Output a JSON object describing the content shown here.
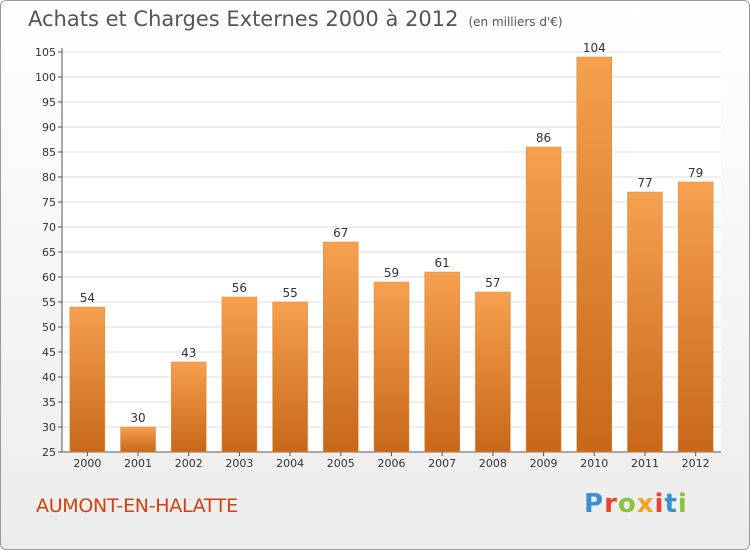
{
  "title": "Achats et Charges Externes 2000 à 2012",
  "unit": "(en milliers d'€)",
  "commune": "AUMONT-EN-HALATTE",
  "logo": {
    "text": "Proxiti",
    "colors": [
      "#3b8fd1",
      "#e8432c",
      "#8ac43f",
      "#f2a22a",
      "#e8432c",
      "#3b8fd1",
      "#8ac43f"
    ]
  },
  "colors": {
    "bar_top": "#f5a14f",
    "bar_bottom": "#c8671a",
    "title": "#555555",
    "commune": "#d2410c"
  },
  "chart_data": {
    "type": "bar",
    "categories": [
      "2000",
      "2001",
      "2002",
      "2003",
      "2004",
      "2005",
      "2006",
      "2007",
      "2008",
      "2009",
      "2010",
      "2011",
      "2012"
    ],
    "values": [
      54,
      30,
      43,
      56,
      55,
      67,
      59,
      61,
      57,
      86,
      104,
      77,
      79
    ],
    "ylim": [
      25,
      105
    ],
    "yticks": [
      25,
      30,
      35,
      40,
      45,
      50,
      55,
      60,
      65,
      70,
      75,
      80,
      85,
      90,
      95,
      100,
      105
    ],
    "grid": true
  }
}
